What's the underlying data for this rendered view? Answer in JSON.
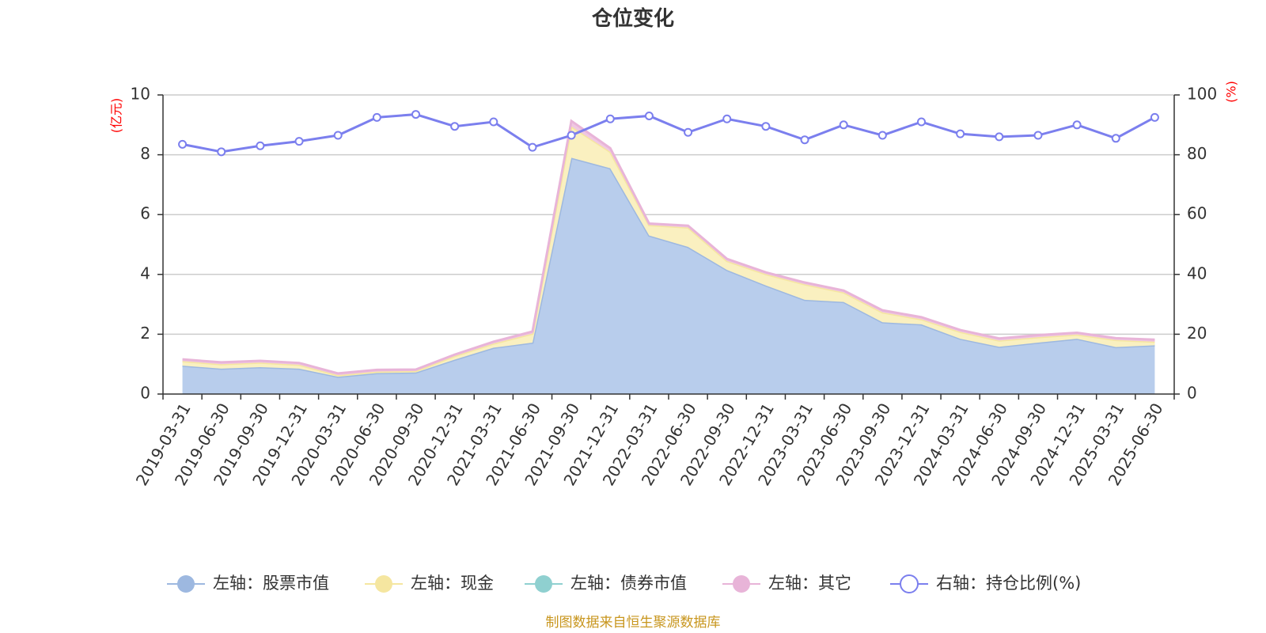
{
  "chart_data": {
    "type": "area",
    "title": "仓位变化",
    "left_unit": "(亿元)",
    "right_unit": "(%)",
    "footer": "制图数据来自恒生聚源数据库",
    "x": [
      "2019-03-31",
      "2019-06-30",
      "2019-09-30",
      "2019-12-31",
      "2020-03-31",
      "2020-06-30",
      "2020-09-30",
      "2020-12-31",
      "2021-03-31",
      "2021-06-30",
      "2021-09-30",
      "2021-12-31",
      "2022-03-31",
      "2022-06-30",
      "2022-09-30",
      "2022-12-31",
      "2023-03-31",
      "2023-06-30",
      "2023-09-30",
      "2023-12-31",
      "2024-03-31",
      "2024-06-30",
      "2024-09-30",
      "2024-12-31",
      "2025-03-31",
      "2025-06-30"
    ],
    "left_axis": {
      "min": 0,
      "max": 10,
      "ticks": [
        0,
        2,
        4,
        6,
        8,
        10
      ]
    },
    "right_axis": {
      "min": 0,
      "max": 100,
      "ticks": [
        0,
        20,
        40,
        60,
        80,
        100
      ]
    },
    "grid": true,
    "legend_position": "bottom",
    "series": [
      {
        "name": "左轴：股票市值",
        "axis": "left",
        "stack": true,
        "color": "#9db8e0",
        "fill": "#b8cdec",
        "values": [
          0.95,
          0.85,
          0.9,
          0.85,
          0.58,
          0.7,
          0.72,
          1.15,
          1.55,
          1.72,
          7.9,
          7.55,
          5.3,
          4.92,
          4.15,
          3.63,
          3.15,
          3.08,
          2.4,
          2.33,
          1.85,
          1.58,
          1.72,
          1.85,
          1.57,
          1.63
        ]
      },
      {
        "name": "左轴：现金",
        "axis": "left",
        "stack": true,
        "color": "#f5e6a0",
        "fill": "#faf0c0",
        "values": [
          0.15,
          0.15,
          0.15,
          0.13,
          0.05,
          0.05,
          0.05,
          0.12,
          0.14,
          0.3,
          1.05,
          0.55,
          0.35,
          0.65,
          0.3,
          0.38,
          0.52,
          0.32,
          0.33,
          0.17,
          0.23,
          0.21,
          0.18,
          0.14,
          0.24,
          0.12
        ]
      },
      {
        "name": "左轴：债券市值",
        "axis": "left",
        "stack": true,
        "color": "#8fd0d0",
        "fill": "#bde4e4",
        "values": [
          0,
          0,
          0,
          0,
          0,
          0,
          0,
          0,
          0,
          0,
          0,
          0,
          0,
          0,
          0,
          0,
          0,
          0,
          0,
          0,
          0,
          0,
          0,
          0,
          0,
          0
        ]
      },
      {
        "name": "左轴：其它",
        "axis": "left",
        "stack": true,
        "color": "#e8b4d8",
        "fill": "#f0c8e2",
        "values": [
          0.06,
          0.06,
          0.06,
          0.06,
          0.06,
          0.06,
          0.05,
          0.05,
          0.06,
          0.07,
          0.18,
          0.12,
          0.05,
          0.06,
          0.07,
          0.06,
          0.06,
          0.06,
          0.07,
          0.07,
          0.06,
          0.07,
          0.07,
          0.06,
          0.06,
          0.07
        ]
      },
      {
        "name": "右轴：持仓比例(%)",
        "axis": "right",
        "stack": false,
        "color": "#7b7fee",
        "values": [
          83.5,
          81.0,
          83.0,
          84.5,
          86.5,
          92.5,
          93.5,
          89.5,
          91.0,
          82.5,
          86.5,
          92.0,
          93.0,
          87.5,
          92.0,
          89.5,
          85.0,
          90.0,
          86.5,
          91.0,
          87.0,
          86.0,
          86.5,
          90.0,
          85.5,
          92.5
        ]
      }
    ]
  }
}
